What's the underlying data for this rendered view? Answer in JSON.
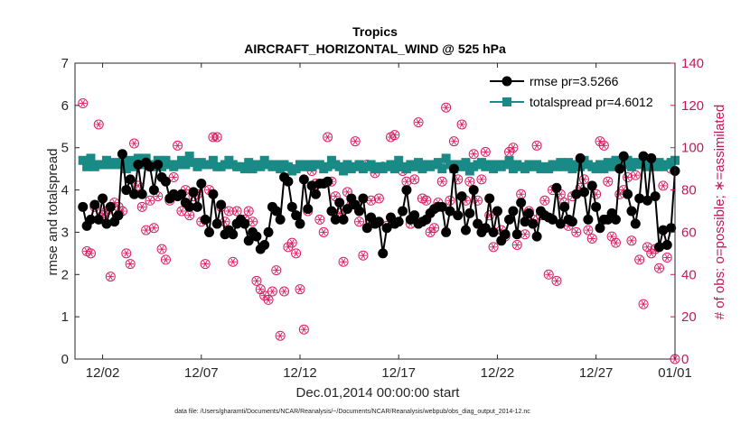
{
  "chart_data": {
    "type": "line",
    "title": "Tropics",
    "subtitle": "AIRCRAFT_HORIZONTAL_WIND @ 525 hPa",
    "xlabel": "Dec.01,2014 00:00:00 start",
    "ylabel_left": "rmse and totalspread",
    "ylabel_right": "# of obs: o=possible; ∗=assimilated",
    "footnote": "data file: /Users/gharamti/Documents/NCAR/Reanalysis/~/Documents/NCAR/Reanalysis/webpub/obs_diag_output_2014-12.nc",
    "xlim": [
      0.6,
      31.0
    ],
    "ylim_left": [
      0,
      7
    ],
    "ylim_right": [
      0,
      140
    ],
    "x_ticks": [
      {
        "value": 2,
        "label": "12/02"
      },
      {
        "value": 7,
        "label": "12/07"
      },
      {
        "value": 12,
        "label": "12/12"
      },
      {
        "value": 17,
        "label": "12/17"
      },
      {
        "value": 22,
        "label": "12/22"
      },
      {
        "value": 27,
        "label": "12/27"
      },
      {
        "value": 31,
        "label": "01/01"
      }
    ],
    "y_ticks_left": [
      "0",
      "1",
      "2",
      "3",
      "4",
      "5",
      "6",
      "7"
    ],
    "y_ticks_right": [
      "0",
      "20",
      "40",
      "60",
      "80",
      "100",
      "120",
      "140"
    ],
    "legend": {
      "position": "top-right",
      "entries": [
        "rmse pr=3.5266",
        "totalspread pr=4.6012"
      ]
    },
    "colors": {
      "rmse": "#000000",
      "totalspread": "#1a8a87",
      "obs": "#d81b60"
    },
    "series": [
      {
        "name": "rmse",
        "axis": "left",
        "marker": "circle",
        "values": [
          3.6,
          3.15,
          3.3,
          3.65,
          3.3,
          3.8,
          3.2,
          3.6,
          3.25,
          3.4,
          4.85,
          4.0,
          4.25,
          3.9,
          4.6,
          3.9,
          4.65,
          4.55,
          4.0,
          4.6,
          4.3,
          4.2,
          3.8,
          3.9,
          3.85,
          3.9,
          3.7,
          3.6,
          3.95,
          3.6,
          4.15,
          3.3,
          3.0,
          3.9,
          3.2,
          3.65,
          2.95,
          3.05,
          2.95,
          3.2,
          3.3,
          3.2,
          2.8,
          3.0,
          2.9,
          2.6,
          2.7,
          3.0,
          3.6,
          3.5,
          3.3,
          4.3,
          4.2,
          3.6,
          3.4,
          3.2,
          4.25,
          3.55,
          4.1,
          3.9,
          4.15,
          4.15,
          4.2,
          3.5,
          3.3,
          3.7,
          3.3,
          3.55,
          3.8,
          3.65,
          3.5,
          3.8,
          3.1,
          3.35,
          3.2,
          3.25,
          2.5,
          3.1,
          3.35,
          3.2,
          3.25,
          3.5,
          4.0,
          3.3,
          3.4,
          3.2,
          3.25,
          3.3,
          3.45,
          3.55,
          3.6,
          3.6,
          3.0,
          3.5,
          4.5,
          3.4,
          3.85,
          3.05,
          3.45,
          4.0,
          3.2,
          3.0,
          3.1,
          3.8,
          3.0,
          3.5,
          2.8,
          2.95,
          3.3,
          3.5,
          2.95,
          3.7,
          3.25,
          3.45,
          3.2,
          2.9,
          3.5,
          3.4,
          3.35,
          3.3,
          4.05,
          3.2,
          3.6,
          3.3,
          3.25,
          3.9,
          4.75,
          3.95,
          3.3,
          4.1,
          3.6,
          3.1,
          3.3,
          3.3,
          3.45,
          3.3,
          4.5,
          4.8,
          3.9,
          3.5,
          3.2,
          3.8,
          4.8,
          3.75,
          4.75,
          3.85,
          2.65,
          3.05,
          2.7,
          3.1,
          4.45
        ]
      },
      {
        "name": "totalspread",
        "axis": "left",
        "marker": "square",
        "values": [
          4.7,
          4.55,
          4.75,
          4.55,
          4.6,
          4.6,
          4.7,
          4.6,
          4.65,
          4.6,
          4.65,
          4.5,
          4.7,
          4.55,
          4.75,
          4.6,
          4.75,
          4.6,
          4.55,
          4.7,
          4.55,
          4.7,
          4.6,
          4.55,
          4.6,
          4.7,
          4.6,
          4.8,
          4.65,
          4.55,
          4.65,
          4.6,
          4.6,
          4.7,
          4.55,
          4.55,
          4.6,
          4.7,
          4.6,
          4.55,
          4.55,
          4.5,
          4.65,
          4.5,
          4.6,
          4.55,
          4.7,
          4.6,
          4.55,
          4.6,
          4.5,
          4.6,
          4.55,
          4.45,
          4.5,
          4.6,
          4.55,
          4.6,
          4.55,
          4.6,
          4.6,
          4.5,
          4.55,
          4.7,
          4.6,
          4.55,
          4.45,
          4.6,
          4.5,
          4.55,
          4.6,
          4.5,
          4.55,
          4.6,
          4.5,
          4.55,
          4.5,
          4.55,
          4.6,
          4.5,
          4.7,
          4.55,
          4.5,
          4.6,
          4.55,
          4.65,
          4.5,
          4.6,
          4.55,
          4.6,
          4.65,
          4.5,
          4.75,
          4.6,
          4.5,
          4.6,
          4.55,
          4.65,
          4.45,
          4.55,
          4.6,
          4.65,
          4.55,
          4.6,
          4.5,
          4.6,
          4.55,
          4.6,
          4.7,
          4.5,
          4.6,
          4.55,
          4.5,
          4.6,
          4.55,
          4.6,
          4.5,
          4.55,
          4.5,
          4.6,
          4.55,
          4.65,
          4.55,
          4.65,
          4.5,
          4.6,
          4.55,
          4.7,
          4.6,
          4.55,
          4.5,
          4.6,
          4.5,
          4.65,
          4.55,
          4.7,
          4.55,
          4.6,
          4.7,
          4.55,
          4.65,
          4.6,
          4.7,
          4.55,
          4.6,
          4.55,
          4.65,
          4.55,
          4.6,
          4.65,
          4.7
        ]
      },
      {
        "name": "obs_possible",
        "axis": "right",
        "marker": "circle-open",
        "values": [
          121,
          51,
          50,
          72,
          111,
          68,
          70,
          39,
          74,
          72,
          70,
          50,
          45,
          102,
          82,
          72,
          61,
          75,
          62,
          77,
          52,
          47,
          75,
          86,
          101,
          70,
          80,
          68,
          77,
          78,
          65,
          45,
          80,
          105,
          105,
          72,
          65,
          70,
          46,
          70,
          65,
          66,
          70,
          65,
          37,
          33,
          30,
          28,
          32,
          42,
          11,
          32,
          53,
          55,
          50,
          33,
          14,
          70,
          89,
          83,
          66,
          60,
          105,
          84,
          77,
          69,
          46,
          79,
          73,
          103,
          65,
          49,
          92,
          75,
          88,
          76,
          91,
          63,
          105,
          106,
          91,
          89,
          84,
          64,
          85,
          112,
          76,
          75,
          60,
          62,
          74,
          84,
          119,
          75,
          103,
          85,
          111,
          75,
          84,
          97,
          75,
          85,
          98,
          68,
          53,
          70,
          61,
          58,
          98,
          100,
          54,
          78,
          59,
          70,
          66,
          101,
          68,
          75,
          40,
          80,
          37,
          78,
          74,
          63,
          77,
          60,
          81,
          85,
          61,
          57,
          78,
          103,
          101,
          84,
          58,
          55,
          78,
          80,
          86,
          56,
          87,
          47,
          26,
          53,
          50,
          52,
          43,
          82,
          48,
          90,
          0
        ]
      },
      {
        "name": "obs_assimilated",
        "axis": "right",
        "marker": "asterisk",
        "values": [
          121,
          51,
          50,
          72,
          111,
          68,
          70,
          39,
          74,
          72,
          70,
          50,
          45,
          102,
          82,
          72,
          61,
          75,
          62,
          77,
          52,
          47,
          75,
          86,
          101,
          70,
          80,
          68,
          77,
          78,
          65,
          45,
          80,
          105,
          105,
          72,
          65,
          70,
          46,
          70,
          65,
          66,
          70,
          65,
          37,
          33,
          30,
          28,
          32,
          42,
          11,
          32,
          53,
          55,
          50,
          33,
          14,
          70,
          89,
          83,
          66,
          60,
          105,
          84,
          77,
          69,
          46,
          79,
          73,
          103,
          65,
          49,
          92,
          75,
          88,
          76,
          91,
          63,
          105,
          106,
          91,
          89,
          84,
          64,
          85,
          112,
          76,
          75,
          60,
          62,
          74,
          84,
          119,
          75,
          103,
          85,
          111,
          75,
          84,
          97,
          75,
          85,
          98,
          68,
          53,
          70,
          61,
          58,
          98,
          100,
          54,
          78,
          59,
          70,
          66,
          101,
          68,
          75,
          40,
          80,
          37,
          78,
          74,
          63,
          77,
          60,
          81,
          85,
          61,
          57,
          78,
          103,
          101,
          84,
          58,
          55,
          78,
          80,
          86,
          56,
          87,
          47,
          26,
          53,
          50,
          52,
          43,
          82,
          48,
          90,
          0
        ]
      }
    ]
  }
}
